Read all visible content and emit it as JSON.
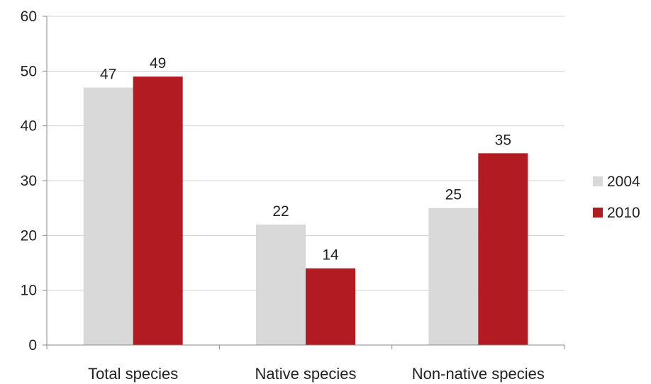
{
  "chart_data": {
    "type": "bar",
    "categories": [
      "Total species",
      "Native species",
      "Non-native species"
    ],
    "series": [
      {
        "name": "2004",
        "values": [
          47,
          22,
          25
        ],
        "color": "#d9d9d9"
      },
      {
        "name": "2010",
        "values": [
          49,
          14,
          35
        ],
        "color": "#b31b22"
      }
    ],
    "ylim": [
      0,
      60
    ],
    "yticks": [
      0,
      10,
      20,
      30,
      40,
      50,
      60
    ],
    "grid": true,
    "legend": "right",
    "data_labels": true
  }
}
